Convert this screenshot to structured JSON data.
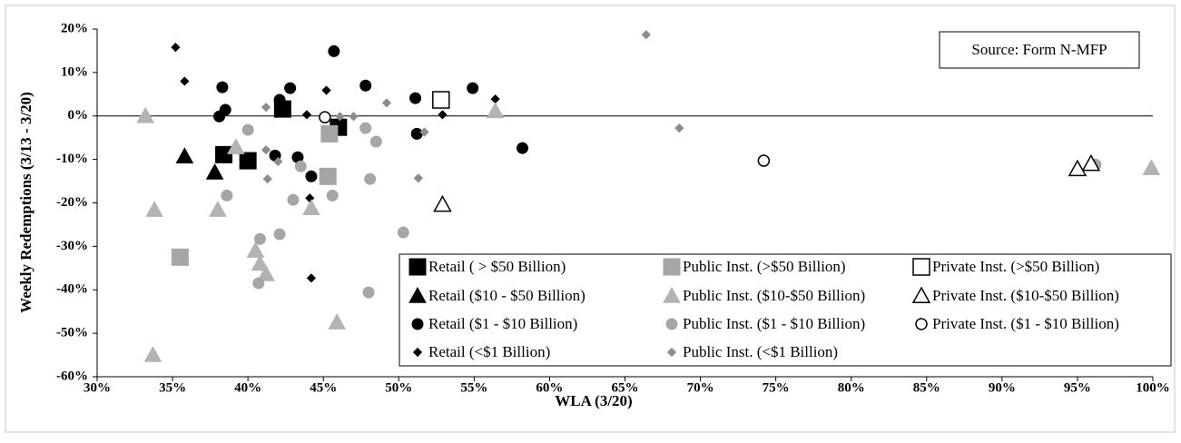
{
  "chart_data": {
    "type": "scatter",
    "xlabel": "WLA (3/20)",
    "ylabel": "Weekly Redemptions (3/13 - 3/20)",
    "annotation": "Source: Form N-MFP",
    "xlim": [
      30,
      100
    ],
    "ylim": [
      -60,
      20
    ],
    "xticks": [
      {
        "value": 30,
        "label": "30%"
      },
      {
        "value": 35,
        "label": "35%"
      },
      {
        "value": 40,
        "label": "40%"
      },
      {
        "value": 45,
        "label": "45%"
      },
      {
        "value": 50,
        "label": "50%"
      },
      {
        "value": 55,
        "label": "55%"
      },
      {
        "value": 60,
        "label": "60%"
      },
      {
        "value": 65,
        "label": "65%"
      },
      {
        "value": 70,
        "label": "70%"
      },
      {
        "value": 75,
        "label": "75%"
      },
      {
        "value": 80,
        "label": "80%"
      },
      {
        "value": 85,
        "label": "85%"
      },
      {
        "value": 90,
        "label": "90%"
      },
      {
        "value": 95,
        "label": "95%"
      },
      {
        "value": 100,
        "label": "100%"
      }
    ],
    "yticks": [
      {
        "value": 20,
        "label": "20%"
      },
      {
        "value": 10,
        "label": "10%"
      },
      {
        "value": 0,
        "label": "0%"
      },
      {
        "value": -10,
        "label": "-10%"
      },
      {
        "value": -20,
        "label": "-20%"
      },
      {
        "value": -30,
        "label": "-30%"
      },
      {
        "value": -40,
        "label": "-40%"
      },
      {
        "value": -50,
        "label": "-50%"
      },
      {
        "value": -60,
        "label": "-60%"
      }
    ],
    "series": [
      {
        "name": "Retail ( > $50 Billion)",
        "marker": "square",
        "color": "#000000",
        "x": [
          38.4,
          40.0,
          42.3,
          46.0
        ],
        "values": [
          -8.9,
          -10.3,
          1.6,
          -2.6
        ]
      },
      {
        "name": "Retail ($10 - $50 Billion)",
        "marker": "triangle",
        "color": "#000000",
        "x": [
          35.8,
          37.8
        ],
        "values": [
          -9.3,
          -13.0
        ]
      },
      {
        "name": "Retail ($1 - $10 Billion)",
        "marker": "circle",
        "color": "#000000",
        "x": [
          38.1,
          38.5,
          38.3,
          41.8,
          42.1,
          42.8,
          43.3,
          44.2,
          45.7,
          47.8,
          51.1,
          51.2,
          54.9,
          58.2
        ],
        "values": [
          -0.1,
          1.4,
          6.6,
          -9.1,
          3.7,
          6.4,
          -9.5,
          -13.9,
          14.9,
          7.0,
          4.1,
          -4.1,
          6.4,
          -7.4
        ]
      },
      {
        "name": "Retail (<$1 Billion)",
        "marker": "diamond",
        "color": "#000000",
        "x": [
          35.2,
          35.8,
          42.7,
          43.9,
          44.1,
          44.2,
          45.2,
          52.9,
          56.4
        ],
        "values": [
          15.8,
          8.0,
          6.6,
          0.3,
          -18.9,
          -37.3,
          5.9,
          0.3,
          3.9
        ]
      },
      {
        "name": "Public Inst. (>$50 Billion)",
        "marker": "square",
        "color": "#a6a6a6",
        "x": [
          35.5,
          45.4,
          45.3
        ],
        "values": [
          -32.5,
          -4.1,
          -13.9
        ]
      },
      {
        "name": "Public Inst. ($10-$50 Billion)",
        "marker": "triangle",
        "color": "#b3b3b3",
        "x": [
          33.2,
          33.8,
          33.7,
          38.0,
          39.2,
          40.5,
          40.8,
          41.2,
          44.2,
          45.9,
          56.4,
          99.9
        ],
        "values": [
          0.0,
          -21.6,
          -55.0,
          -21.6,
          -7.2,
          -31.0,
          -34.0,
          -36.4,
          -21.2,
          -47.5,
          1.1,
          -12.0
        ]
      },
      {
        "name": "Public Inst. ($1 - $10 Billion)",
        "marker": "circle",
        "color": "#a6a6a6",
        "x": [
          38.6,
          40.0,
          40.8,
          40.7,
          42.1,
          43.0,
          43.5,
          45.6,
          47.8,
          48.0,
          48.1,
          48.5,
          50.3,
          96.2
        ],
        "values": [
          -18.3,
          -3.2,
          -28.3,
          -38.5,
          -27.2,
          -19.3,
          -11.6,
          -18.3,
          -2.8,
          -40.6,
          -14.5,
          -5.9,
          -26.8,
          -11.2
        ]
      },
      {
        "name": "Public Inst. (<$1 Billion)",
        "marker": "diamond",
        "color": "#8c8c8c",
        "x": [
          41.2,
          41.2,
          41.3,
          42.0,
          46.1,
          47.0,
          49.2,
          51.7,
          51.3,
          66.4,
          68.6
        ],
        "values": [
          2.0,
          -7.8,
          -14.5,
          -10.5,
          -0.1,
          -0.1,
          3.0,
          -3.7,
          -14.3,
          18.7,
          -2.8
        ]
      },
      {
        "name": "Private Inst. (>$50 Billion)",
        "marker": "open-square",
        "color": "#000000",
        "x": [
          52.8
        ],
        "values": [
          3.7
        ]
      },
      {
        "name": "Private Inst. ($10-$50 Billion)",
        "marker": "open-triangle",
        "color": "#000000",
        "x": [
          52.9,
          95.0,
          95.9
        ],
        "values": [
          -20.4,
          -12.2,
          -11.0
        ]
      },
      {
        "name": "Private Inst. ($1 - $10 Billion)",
        "marker": "open-circle",
        "color": "#000000",
        "x": [
          45.1,
          74.2
        ],
        "values": [
          -0.3,
          -10.3
        ]
      }
    ]
  }
}
